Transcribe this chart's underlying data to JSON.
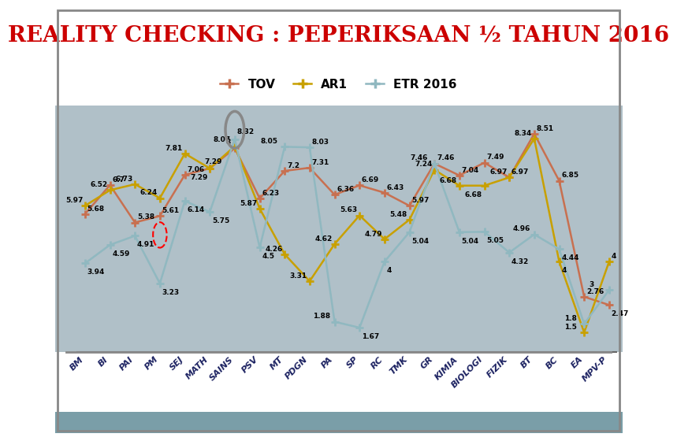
{
  "title": "REALITY CHECKING : PEPERIKSAAN ½ TAHUN 2016",
  "title_color": "#cc0000",
  "title_bg": "#ffffff",
  "legend_bg": "#ffffff",
  "plot_bg": "#b0c0c8",
  "xlabel_bg": "#ffffff",
  "footer_bg": "#7a9ea8",
  "outer_bg": "#ffffff",
  "categories": [
    "BM",
    "BI",
    "PAI",
    "PM",
    "SEJ",
    "MATH",
    "SAINS",
    "PSV",
    "MT",
    "PDGN",
    "PA",
    "SP",
    "RC",
    "TMK",
    "GR",
    "KIMIA",
    "BIOLOGI",
    "FIZIK",
    "BT",
    "BC",
    "EA",
    "MPV-P"
  ],
  "TOV": [
    5.68,
    6.7,
    5.38,
    5.61,
    7.06,
    7.29,
    8.0,
    6.23,
    7.2,
    7.31,
    6.36,
    6.69,
    6.43,
    5.97,
    7.46,
    7.04,
    7.49,
    6.97,
    8.51,
    6.85,
    2.76,
    2.47
  ],
  "AR1": [
    5.97,
    6.52,
    6.73,
    6.24,
    7.81,
    7.29,
    8.07,
    5.87,
    4.26,
    3.31,
    4.62,
    5.63,
    4.79,
    5.48,
    7.24,
    6.68,
    6.68,
    6.97,
    8.34,
    4.0,
    1.5,
    4.0
  ],
  "ETR": [
    3.94,
    4.59,
    4.91,
    3.23,
    6.14,
    5.75,
    8.32,
    4.5,
    8.05,
    8.03,
    1.88,
    1.67,
    4.0,
    5.04,
    7.46,
    5.04,
    5.05,
    4.32,
    4.96,
    4.44,
    1.8,
    3.0
  ],
  "TOV_color": "#c87050",
  "AR1_color": "#c8a000",
  "ETR_color": "#90b8c0",
  "legend_labels": [
    "TOV",
    "AR1",
    "ETR 2016"
  ]
}
